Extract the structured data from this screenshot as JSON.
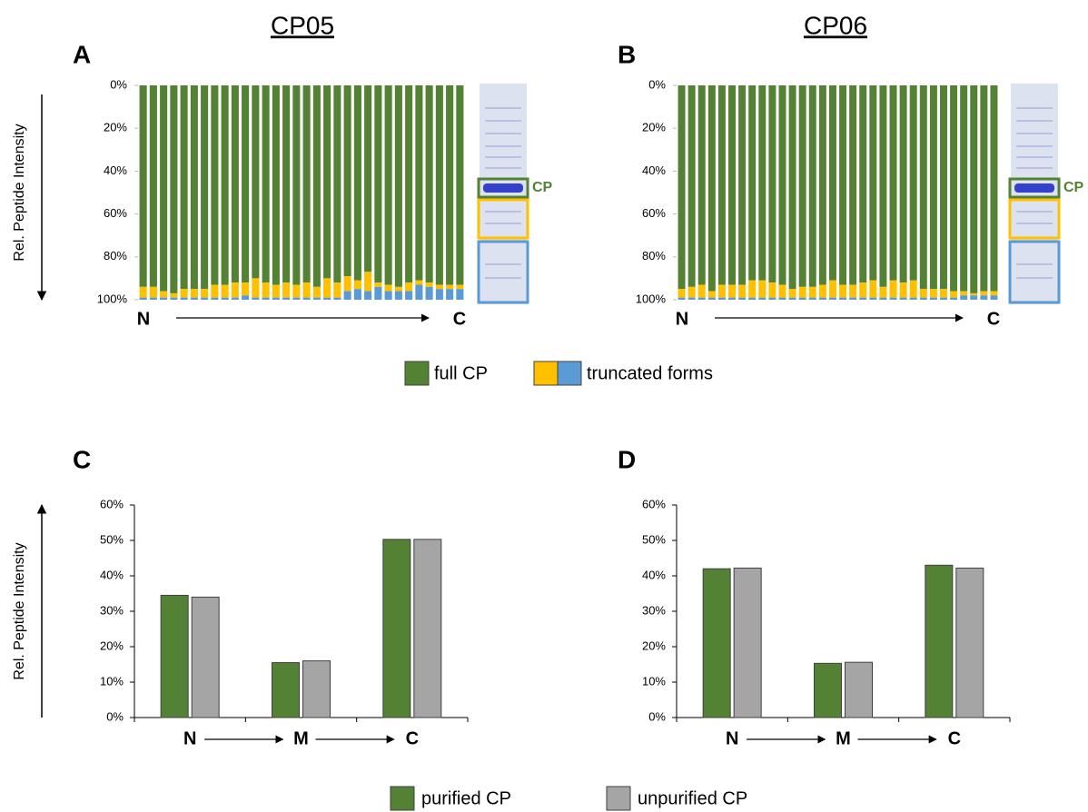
{
  "chart_data": [
    {
      "type": "stacked_bar",
      "panel": "A",
      "title": "CP05",
      "y_label": "Rel. Peptide Intensity",
      "inverted": true,
      "start_label": "N",
      "end_label": "C",
      "band_label": "CP",
      "ylim": [
        0,
        100
      ],
      "yticks": [
        {
          "value": 0,
          "label": "0%"
        },
        {
          "value": 20,
          "label": "20%"
        },
        {
          "value": 40,
          "label": "40%"
        },
        {
          "value": 60,
          "label": "60%"
        },
        {
          "value": 80,
          "label": "80%"
        },
        {
          "value": 100,
          "label": "100%"
        }
      ],
      "series": [
        {
          "color": "#548235",
          "values": [
            94,
            94,
            96,
            97,
            95,
            95,
            95,
            93,
            93,
            92,
            92,
            90,
            92,
            93,
            92,
            93,
            92,
            94,
            90,
            92,
            89,
            91,
            87,
            92,
            93,
            94,
            92,
            91,
            92,
            93,
            93,
            93
          ]
        },
        {
          "color": "#ffc000",
          "values": [
            5,
            5,
            3,
            2,
            4,
            4,
            4,
            6,
            6,
            7,
            6,
            9,
            7,
            6,
            7,
            6,
            7,
            5,
            9,
            7,
            7,
            4,
            9,
            2,
            3,
            2,
            4,
            2,
            2,
            2,
            2,
            2
          ]
        },
        {
          "color": "#5b9bd5",
          "values": [
            1,
            1,
            1,
            1,
            1,
            1,
            1,
            1,
            1,
            1,
            2,
            1,
            1,
            1,
            1,
            1,
            1,
            1,
            1,
            1,
            4,
            5,
            4,
            6,
            4,
            4,
            4,
            7,
            6,
            5,
            5,
            5
          ]
        }
      ]
    },
    {
      "type": "stacked_bar",
      "panel": "B",
      "title": "CP06",
      "inverted": true,
      "start_label": "N",
      "end_label": "C",
      "band_label": "CP",
      "ylim": [
        0,
        100
      ],
      "yticks": [
        {
          "value": 0,
          "label": "0%"
        },
        {
          "value": 20,
          "label": "20%"
        },
        {
          "value": 40,
          "label": "40%"
        },
        {
          "value": 60,
          "label": "60%"
        },
        {
          "value": 80,
          "label": "80%"
        },
        {
          "value": 100,
          "label": "100%"
        }
      ],
      "series": [
        {
          "color": "#548235",
          "values": [
            95,
            94,
            93,
            96,
            93,
            93,
            93,
            91,
            91,
            92,
            93,
            95,
            94,
            94,
            93,
            91,
            93,
            93,
            92,
            91,
            94,
            91,
            92,
            91,
            95,
            95,
            95,
            96,
            96,
            97,
            96,
            96
          ]
        },
        {
          "color": "#ffc000",
          "values": [
            4,
            5,
            6,
            3,
            6,
            6,
            6,
            8,
            8,
            7,
            6,
            4,
            5,
            5,
            6,
            8,
            6,
            6,
            7,
            8,
            5,
            8,
            7,
            8,
            4,
            4,
            4,
            3,
            2,
            1,
            2,
            2
          ]
        },
        {
          "color": "#5b9bd5",
          "values": [
            1,
            1,
            1,
            1,
            1,
            1,
            1,
            1,
            1,
            1,
            1,
            1,
            1,
            1,
            1,
            1,
            1,
            1,
            1,
            1,
            1,
            1,
            1,
            1,
            1,
            1,
            1,
            1,
            2,
            2,
            2,
            2
          ]
        }
      ]
    },
    {
      "type": "bar",
      "panel": "C",
      "y_label": "Rel. Peptide Intensity",
      "categories": [
        "N",
        "M",
        "C"
      ],
      "ylim": [
        0,
        60
      ],
      "yticks": [
        {
          "value": 0,
          "label": "0%"
        },
        {
          "value": 10,
          "label": "10%"
        },
        {
          "value": 20,
          "label": "20%"
        },
        {
          "value": 30,
          "label": "30%"
        },
        {
          "value": 40,
          "label": "40%"
        },
        {
          "value": 50,
          "label": "50%"
        },
        {
          "value": 60,
          "label": "60%"
        }
      ],
      "series": [
        {
          "name": "purified CP",
          "color": "#548235",
          "values": [
            34.5,
            15.5,
            50.3
          ]
        },
        {
          "name": "unpurified CP",
          "color": "#a5a5a5",
          "values": [
            34,
            16,
            50.3
          ]
        }
      ]
    },
    {
      "type": "bar",
      "panel": "D",
      "categories": [
        "N",
        "M",
        "C"
      ],
      "ylim": [
        0,
        60
      ],
      "yticks": [
        {
          "value": 0,
          "label": "0%"
        },
        {
          "value": 10,
          "label": "10%"
        },
        {
          "value": 20,
          "label": "20%"
        },
        {
          "value": 30,
          "label": "30%"
        },
        {
          "value": 40,
          "label": "40%"
        },
        {
          "value": 50,
          "label": "50%"
        },
        {
          "value": 60,
          "label": "60%"
        }
      ],
      "series": [
        {
          "name": "purified CP",
          "color": "#548235",
          "values": [
            42,
            15.3,
            43
          ]
        },
        {
          "name": "unpurified CP",
          "color": "#a5a5a5",
          "values": [
            42.2,
            15.6,
            42.2
          ]
        }
      ]
    }
  ],
  "top_legend": [
    {
      "label": "full CP",
      "colors": [
        "#548235"
      ]
    },
    {
      "label": "truncated forms",
      "colors": [
        "#ffc000",
        "#5b9bd5"
      ]
    }
  ]
}
